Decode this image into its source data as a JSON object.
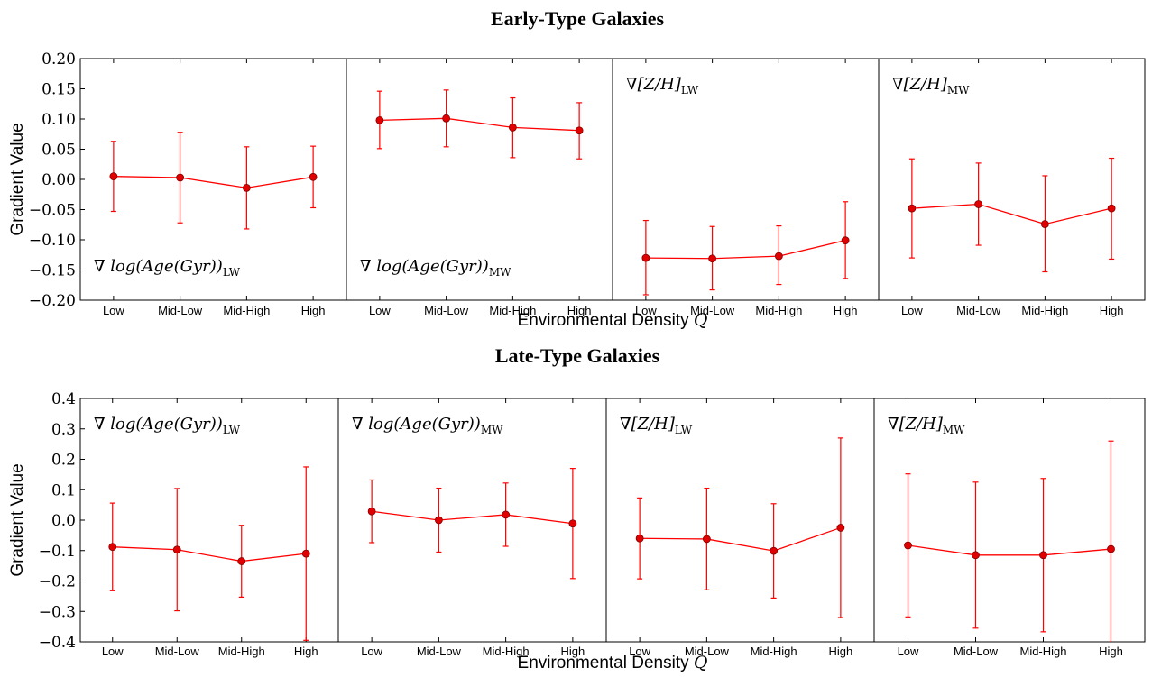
{
  "chart_data": [
    {
      "type": "line",
      "title": "Early-Type Galaxies",
      "xlabel": "Environmental Density Q",
      "ylabel": "Gradient Value",
      "ylim": [
        -0.2,
        0.2
      ],
      "yticks": [
        "0.20",
        "0.15",
        "0.10",
        "0.05",
        "0.00",
        "−0.05",
        "−0.10",
        "−0.15",
        "−0.20"
      ],
      "yticks_values": [
        0.2,
        0.15,
        0.1,
        0.05,
        0.0,
        -0.05,
        -0.1,
        -0.15,
        -0.2
      ],
      "color": "#ff0000",
      "categories": [
        "Low",
        "Mid-Low",
        "Mid-High",
        "High"
      ],
      "panels": [
        {
          "label_main": "∇ log(Age(Gyr))",
          "label_sub": "LW",
          "label_pos": "bottom-left",
          "values": [
            0.005,
            0.003,
            -0.014,
            0.004
          ],
          "err_low": [
            -0.053,
            -0.072,
            -0.082,
            -0.047
          ],
          "err_high": [
            0.063,
            0.078,
            0.054,
            0.055
          ]
        },
        {
          "label_main": "∇ log(Age(Gyr))",
          "label_sub": "MW",
          "label_pos": "bottom-left",
          "values": [
            0.098,
            0.101,
            0.086,
            0.081
          ],
          "err_low": [
            0.051,
            0.054,
            0.036,
            0.034
          ],
          "err_high": [
            0.146,
            0.148,
            0.135,
            0.127
          ]
        },
        {
          "label_main": "∇[Z/H]",
          "label_sub": "LW",
          "label_pos": "top-left",
          "values": [
            -0.13,
            -0.131,
            -0.127,
            -0.101
          ],
          "err_low": [
            -0.191,
            -0.183,
            -0.174,
            -0.164
          ],
          "err_high": [
            -0.068,
            -0.078,
            -0.077,
            -0.037
          ]
        },
        {
          "label_main": "∇[Z/H]",
          "label_sub": "MW",
          "label_pos": "top-left",
          "values": [
            -0.048,
            -0.041,
            -0.074,
            -0.048
          ],
          "err_low": [
            -0.13,
            -0.109,
            -0.153,
            -0.132
          ],
          "err_high": [
            0.034,
            0.027,
            0.006,
            0.035
          ]
        }
      ]
    },
    {
      "type": "line",
      "title": "Late-Type Galaxies",
      "xlabel": "Environmental Density Q",
      "ylabel": "Gradient Value",
      "ylim": [
        -0.4,
        0.4
      ],
      "yticks": [
        "0.4",
        "0.3",
        "0.2",
        "0.1",
        "0.0",
        "−0.1",
        "−0.2",
        "−0.3",
        "−0.4"
      ],
      "yticks_values": [
        0.4,
        0.3,
        0.2,
        0.1,
        0.0,
        -0.1,
        -0.2,
        -0.3,
        -0.4
      ],
      "color": "#ff0000",
      "categories": [
        "Low",
        "Mid-Low",
        "Mid-High",
        "High"
      ],
      "panels": [
        {
          "label_main": "∇ log(Age(Gyr))",
          "label_sub": "LW",
          "label_pos": "top-left",
          "values": [
            -0.088,
            -0.097,
            -0.135,
            -0.11
          ],
          "err_low": [
            -0.232,
            -0.298,
            -0.253,
            -0.395
          ],
          "err_high": [
            0.056,
            0.104,
            -0.017,
            0.175
          ]
        },
        {
          "label_main": "∇ log(Age(Gyr))",
          "label_sub": "MW",
          "label_pos": "top-left",
          "values": [
            0.029,
            0.0,
            0.018,
            -0.011
          ],
          "err_low": [
            -0.074,
            -0.105,
            -0.086,
            -0.192
          ],
          "err_high": [
            0.132,
            0.105,
            0.122,
            0.17
          ]
        },
        {
          "label_main": "∇[Z/H]",
          "label_sub": "LW",
          "label_pos": "top-left",
          "values": [
            -0.06,
            -0.062,
            -0.101,
            -0.025
          ],
          "err_low": [
            -0.193,
            -0.229,
            -0.256,
            -0.32
          ],
          "err_high": [
            0.073,
            0.105,
            0.054,
            0.27
          ]
        },
        {
          "label_main": "∇[Z/H]",
          "label_sub": "MW",
          "label_pos": "top-left",
          "values": [
            -0.083,
            -0.115,
            -0.115,
            -0.095
          ],
          "err_low": [
            -0.318,
            -0.355,
            -0.367,
            -0.41
          ],
          "err_high": [
            0.152,
            0.125,
            0.137,
            0.26
          ]
        }
      ]
    }
  ]
}
